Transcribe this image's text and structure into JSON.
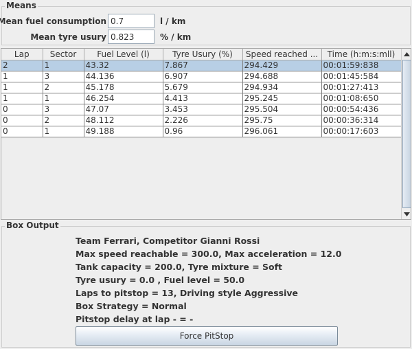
{
  "means": {
    "title": "Means",
    "fuel_label": "Mean fuel consumption",
    "fuel_value": "0.7",
    "fuel_unit": "l / km",
    "tyre_label": "Mean tyre usury",
    "tyre_value": "0.823",
    "tyre_unit": "% / km"
  },
  "table": {
    "columns": [
      "Lap",
      "Sector",
      "Fuel Level (l)",
      "Tyre Usury (%)",
      "Speed reached ...",
      "Time (h:m:s:mll)"
    ],
    "rows": [
      [
        "2",
        "1",
        "43.32",
        "7.867",
        "294.429",
        "00:01:59:838"
      ],
      [
        "1",
        "3",
        "44.136",
        "6.907",
        "294.688",
        "00:01:45:584"
      ],
      [
        "1",
        "2",
        "45.178",
        "5.679",
        "294.934",
        "00:01:27:413"
      ],
      [
        "1",
        "1",
        "46.254",
        "4.413",
        "295.245",
        "00:01:08:650"
      ],
      [
        "0",
        "3",
        "47.07",
        "3.453",
        "295.504",
        "00:00:54:436"
      ],
      [
        "0",
        "2",
        "48.112",
        "2.226",
        "295.75",
        "00:00:36:314"
      ],
      [
        "0",
        "1",
        "49.188",
        "0.96",
        "296.061",
        "00:00:17:603"
      ]
    ],
    "selected_row": 0
  },
  "box_output": {
    "title": "Box Output",
    "lines": [
      "Team Ferrari, Competitor Gianni Rossi",
      "Max speed reachable = 300.0, Max acceleration = 12.0",
      "Tank capacity = 200.0, Tyre mixture = Soft",
      "Tyre usury = 0.0 , Fuel level = 50.0",
      "Laps to pitstop = 13, Driving style Aggressive",
      "Box Strategy = Normal",
      "Pitstop delay at lap - = -"
    ],
    "button_label": "Force PitStop"
  },
  "colors": {
    "selection": "#b8cfe5",
    "background": "#eeeeee",
    "button_gradient_end": "#c9d6e3"
  },
  "icons": {
    "scroll_up": "arrow-up-icon",
    "scroll_down": "arrow-down-icon"
  }
}
